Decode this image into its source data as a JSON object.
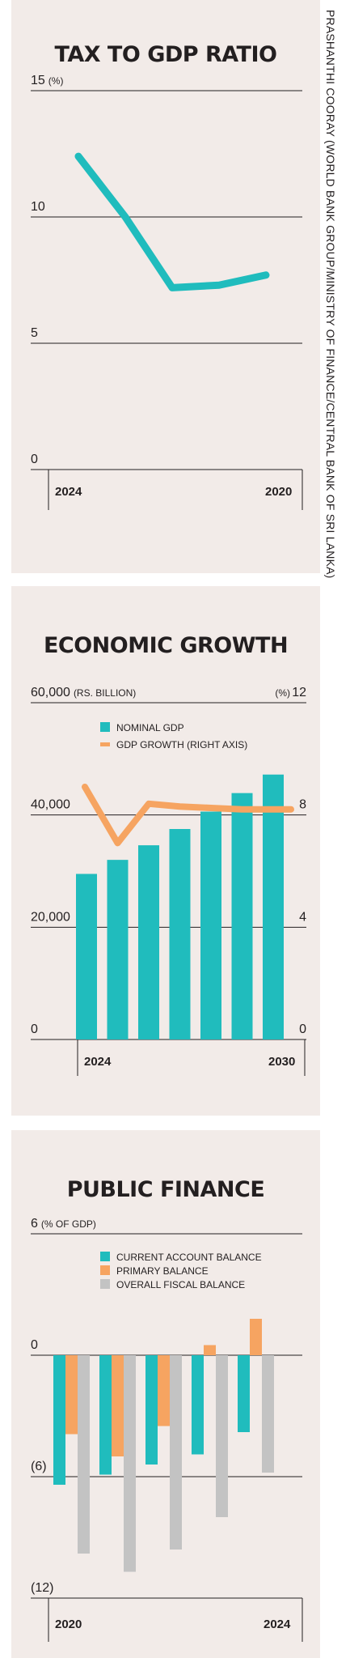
{
  "credit": "PRASHANTHI COORAY (WORLD BANK GROUP/MINISTRY OF FINANCE/CENTRAL BANK OF SRI LANKA)",
  "colors": {
    "teal": "#20bcbd",
    "orange": "#f6a461",
    "gray": "#c3c3c3",
    "panel_bg": "#f2ebe8"
  },
  "chart_data": [
    {
      "type": "line",
      "title": "TAX TO GDP RATIO",
      "ylabel": "(%)",
      "y_ticks": [
        "15",
        "10",
        "5",
        "0"
      ],
      "x_tick_labels": [
        "2024",
        "2020"
      ],
      "ylim": [
        0,
        15
      ],
      "series": [
        {
          "values": [
            12.4,
            10.0,
            7.2,
            7.3,
            7.7
          ]
        }
      ]
    },
    {
      "type": "bar",
      "title": "ECONOMIC GROWTH",
      "ylabel": "(RS. BILLION)",
      "y2label": "(%)",
      "y_ticks": [
        "60,000",
        "40,000",
        "20,000",
        "0"
      ],
      "y2_ticks": [
        "12",
        "8",
        "4",
        "0"
      ],
      "x_tick_labels": [
        "2024",
        "2030"
      ],
      "ylim": [
        0,
        60000
      ],
      "y2lim": [
        0,
        12
      ],
      "legend_position": "top-left",
      "series": [
        {
          "name": "NOMINAL GDP",
          "values": [
            29500,
            32000,
            34600,
            37500,
            40600,
            43900,
            47200
          ]
        },
        {
          "name": "GDP GROWTH (RIGHT AXIS)",
          "axis": "right",
          "values": [
            9.0,
            7.0,
            8.4,
            8.3,
            8.25,
            8.2,
            8.2
          ]
        }
      ]
    },
    {
      "type": "bar",
      "title": "PUBLIC FINANCE",
      "ylabel": "(% OF GDP)",
      "y_ticks": [
        "6",
        "0",
        "(6)",
        "(12)"
      ],
      "x_tick_labels": [
        "2020",
        "2024"
      ],
      "ylim": [
        -12,
        6
      ],
      "legend_position": "top-left",
      "series": [
        {
          "name": "CURRENT ACCOUNT BALANCE",
          "values": [
            -6.4,
            -5.9,
            -5.4,
            -4.9,
            -3.8
          ]
        },
        {
          "name": "PRIMARY BALANCE",
          "values": [
            -3.9,
            -5.0,
            -3.5,
            0.5,
            1.8
          ]
        },
        {
          "name": "OVERALL FISCAL BALANCE",
          "values": [
            -9.8,
            -10.7,
            -9.6,
            -8.0,
            -5.8
          ]
        }
      ]
    }
  ]
}
